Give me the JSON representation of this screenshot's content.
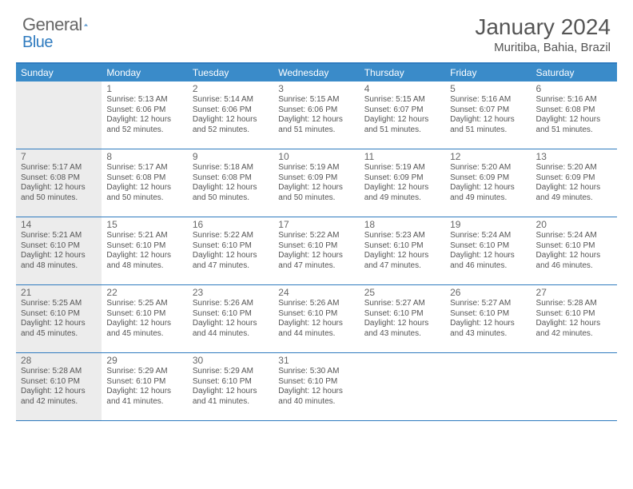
{
  "brand": {
    "name1": "General",
    "name2": "Blue"
  },
  "title": "January 2024",
  "location": "Muritiba, Bahia, Brazil",
  "colors": {
    "header_bar": "#3a8bc9",
    "border": "#2f7bbf",
    "shaded_bg": "#ececec",
    "text": "#555555",
    "fontsize_title": 28,
    "fontsize_location": 15,
    "fontsize_dow": 12,
    "fontsize_daynum": 12,
    "fontsize_body": 10
  },
  "days_of_week": [
    "Sunday",
    "Monday",
    "Tuesday",
    "Wednesday",
    "Thursday",
    "Friday",
    "Saturday"
  ],
  "weeks": [
    [
      {
        "num": "",
        "shaded": true,
        "lines": []
      },
      {
        "num": "1",
        "lines": [
          "Sunrise: 5:13 AM",
          "Sunset: 6:06 PM",
          "Daylight: 12 hours",
          "and 52 minutes."
        ]
      },
      {
        "num": "2",
        "lines": [
          "Sunrise: 5:14 AM",
          "Sunset: 6:06 PM",
          "Daylight: 12 hours",
          "and 52 minutes."
        ]
      },
      {
        "num": "3",
        "lines": [
          "Sunrise: 5:15 AM",
          "Sunset: 6:06 PM",
          "Daylight: 12 hours",
          "and 51 minutes."
        ]
      },
      {
        "num": "4",
        "lines": [
          "Sunrise: 5:15 AM",
          "Sunset: 6:07 PM",
          "Daylight: 12 hours",
          "and 51 minutes."
        ]
      },
      {
        "num": "5",
        "lines": [
          "Sunrise: 5:16 AM",
          "Sunset: 6:07 PM",
          "Daylight: 12 hours",
          "and 51 minutes."
        ]
      },
      {
        "num": "6",
        "lines": [
          "Sunrise: 5:16 AM",
          "Sunset: 6:08 PM",
          "Daylight: 12 hours",
          "and 51 minutes."
        ]
      }
    ],
    [
      {
        "num": "7",
        "shaded": true,
        "lines": [
          "Sunrise: 5:17 AM",
          "Sunset: 6:08 PM",
          "Daylight: 12 hours",
          "and 50 minutes."
        ]
      },
      {
        "num": "8",
        "lines": [
          "Sunrise: 5:17 AM",
          "Sunset: 6:08 PM",
          "Daylight: 12 hours",
          "and 50 minutes."
        ]
      },
      {
        "num": "9",
        "lines": [
          "Sunrise: 5:18 AM",
          "Sunset: 6:08 PM",
          "Daylight: 12 hours",
          "and 50 minutes."
        ]
      },
      {
        "num": "10",
        "lines": [
          "Sunrise: 5:19 AM",
          "Sunset: 6:09 PM",
          "Daylight: 12 hours",
          "and 50 minutes."
        ]
      },
      {
        "num": "11",
        "lines": [
          "Sunrise: 5:19 AM",
          "Sunset: 6:09 PM",
          "Daylight: 12 hours",
          "and 49 minutes."
        ]
      },
      {
        "num": "12",
        "lines": [
          "Sunrise: 5:20 AM",
          "Sunset: 6:09 PM",
          "Daylight: 12 hours",
          "and 49 minutes."
        ]
      },
      {
        "num": "13",
        "lines": [
          "Sunrise: 5:20 AM",
          "Sunset: 6:09 PM",
          "Daylight: 12 hours",
          "and 49 minutes."
        ]
      }
    ],
    [
      {
        "num": "14",
        "shaded": true,
        "lines": [
          "Sunrise: 5:21 AM",
          "Sunset: 6:10 PM",
          "Daylight: 12 hours",
          "and 48 minutes."
        ]
      },
      {
        "num": "15",
        "lines": [
          "Sunrise: 5:21 AM",
          "Sunset: 6:10 PM",
          "Daylight: 12 hours",
          "and 48 minutes."
        ]
      },
      {
        "num": "16",
        "lines": [
          "Sunrise: 5:22 AM",
          "Sunset: 6:10 PM",
          "Daylight: 12 hours",
          "and 47 minutes."
        ]
      },
      {
        "num": "17",
        "lines": [
          "Sunrise: 5:22 AM",
          "Sunset: 6:10 PM",
          "Daylight: 12 hours",
          "and 47 minutes."
        ]
      },
      {
        "num": "18",
        "lines": [
          "Sunrise: 5:23 AM",
          "Sunset: 6:10 PM",
          "Daylight: 12 hours",
          "and 47 minutes."
        ]
      },
      {
        "num": "19",
        "lines": [
          "Sunrise: 5:24 AM",
          "Sunset: 6:10 PM",
          "Daylight: 12 hours",
          "and 46 minutes."
        ]
      },
      {
        "num": "20",
        "lines": [
          "Sunrise: 5:24 AM",
          "Sunset: 6:10 PM",
          "Daylight: 12 hours",
          "and 46 minutes."
        ]
      }
    ],
    [
      {
        "num": "21",
        "shaded": true,
        "lines": [
          "Sunrise: 5:25 AM",
          "Sunset: 6:10 PM",
          "Daylight: 12 hours",
          "and 45 minutes."
        ]
      },
      {
        "num": "22",
        "lines": [
          "Sunrise: 5:25 AM",
          "Sunset: 6:10 PM",
          "Daylight: 12 hours",
          "and 45 minutes."
        ]
      },
      {
        "num": "23",
        "lines": [
          "Sunrise: 5:26 AM",
          "Sunset: 6:10 PM",
          "Daylight: 12 hours",
          "and 44 minutes."
        ]
      },
      {
        "num": "24",
        "lines": [
          "Sunrise: 5:26 AM",
          "Sunset: 6:10 PM",
          "Daylight: 12 hours",
          "and 44 minutes."
        ]
      },
      {
        "num": "25",
        "lines": [
          "Sunrise: 5:27 AM",
          "Sunset: 6:10 PM",
          "Daylight: 12 hours",
          "and 43 minutes."
        ]
      },
      {
        "num": "26",
        "lines": [
          "Sunrise: 5:27 AM",
          "Sunset: 6:10 PM",
          "Daylight: 12 hours",
          "and 43 minutes."
        ]
      },
      {
        "num": "27",
        "lines": [
          "Sunrise: 5:28 AM",
          "Sunset: 6:10 PM",
          "Daylight: 12 hours",
          "and 42 minutes."
        ]
      }
    ],
    [
      {
        "num": "28",
        "shaded": true,
        "lines": [
          "Sunrise: 5:28 AM",
          "Sunset: 6:10 PM",
          "Daylight: 12 hours",
          "and 42 minutes."
        ]
      },
      {
        "num": "29",
        "lines": [
          "Sunrise: 5:29 AM",
          "Sunset: 6:10 PM",
          "Daylight: 12 hours",
          "and 41 minutes."
        ]
      },
      {
        "num": "30",
        "lines": [
          "Sunrise: 5:29 AM",
          "Sunset: 6:10 PM",
          "Daylight: 12 hours",
          "and 41 minutes."
        ]
      },
      {
        "num": "31",
        "lines": [
          "Sunrise: 5:30 AM",
          "Sunset: 6:10 PM",
          "Daylight: 12 hours",
          "and 40 minutes."
        ]
      },
      {
        "num": "",
        "lines": []
      },
      {
        "num": "",
        "lines": []
      },
      {
        "num": "",
        "lines": []
      }
    ]
  ]
}
